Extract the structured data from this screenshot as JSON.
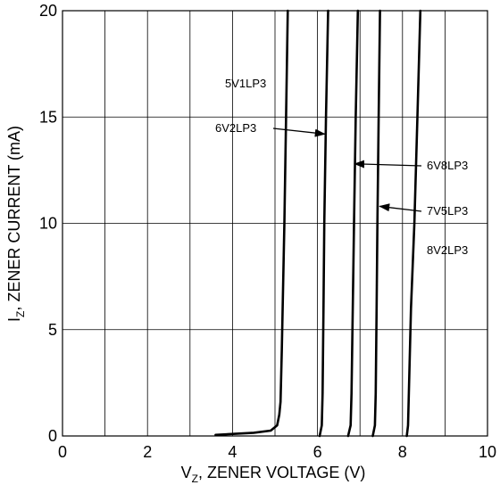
{
  "chart_data": {
    "type": "line",
    "xlabel": {
      "main": "V",
      "sub": "Z",
      "rest": ", ZENER VOLTAGE (V)"
    },
    "ylabel": {
      "main": "I",
      "sub": "Z",
      "rest": ", ZENER CURRENT (mA)"
    },
    "xlim": [
      0,
      10
    ],
    "ylim": [
      0,
      20
    ],
    "x_ticks": [
      "0",
      "2",
      "4",
      "6",
      "8",
      "10"
    ],
    "y_ticks": [
      "0",
      "5",
      "10",
      "15",
      "20"
    ],
    "grid": true,
    "series": [
      {
        "name": "5V1LP3",
        "x": [
          3.6,
          4.5,
          4.9,
          5.05,
          5.1,
          5.13,
          5.16,
          5.22,
          5.3
        ],
        "y": [
          0.05,
          0.15,
          0.25,
          0.5,
          1.0,
          1.6,
          4.0,
          10.0,
          20.0
        ]
      },
      {
        "name": "6V2LP3",
        "x": [
          6.05,
          6.1,
          6.12,
          6.14,
          6.16,
          6.2,
          6.25
        ],
        "y": [
          0.0,
          0.5,
          2.0,
          6.0,
          10.0,
          15.0,
          20.0
        ]
      },
      {
        "name": "6V8LP3",
        "x": [
          6.72,
          6.78,
          6.8,
          6.83,
          6.86,
          6.9,
          6.95
        ],
        "y": [
          0.0,
          0.5,
          2.0,
          6.0,
          10.0,
          15.0,
          20.0
        ]
      },
      {
        "name": "7V5LP3",
        "x": [
          7.3,
          7.35,
          7.37,
          7.39,
          7.41,
          7.44,
          7.47
        ],
        "y": [
          0.0,
          0.5,
          2.0,
          6.0,
          10.0,
          15.0,
          20.0
        ]
      },
      {
        "name": "8V2LP3",
        "x": [
          8.1,
          8.13,
          8.15,
          8.2,
          8.28,
          8.35,
          8.42
        ],
        "y": [
          0.0,
          0.5,
          2.0,
          6.0,
          10.0,
          15.0,
          20.0
        ]
      }
    ],
    "annotations": [
      {
        "text": "5V1LP3",
        "arrow": false
      },
      {
        "text": "6V2LP3",
        "arrow": true,
        "points_to": [
          6.13,
          14.2
        ]
      },
      {
        "text": "6V8LP3",
        "arrow": true,
        "points_to": [
          6.83,
          12.8
        ]
      },
      {
        "text": "7V5LP3",
        "arrow": true,
        "points_to": [
          7.42,
          10.8
        ]
      },
      {
        "text": "8V2LP3",
        "arrow": false
      }
    ]
  }
}
